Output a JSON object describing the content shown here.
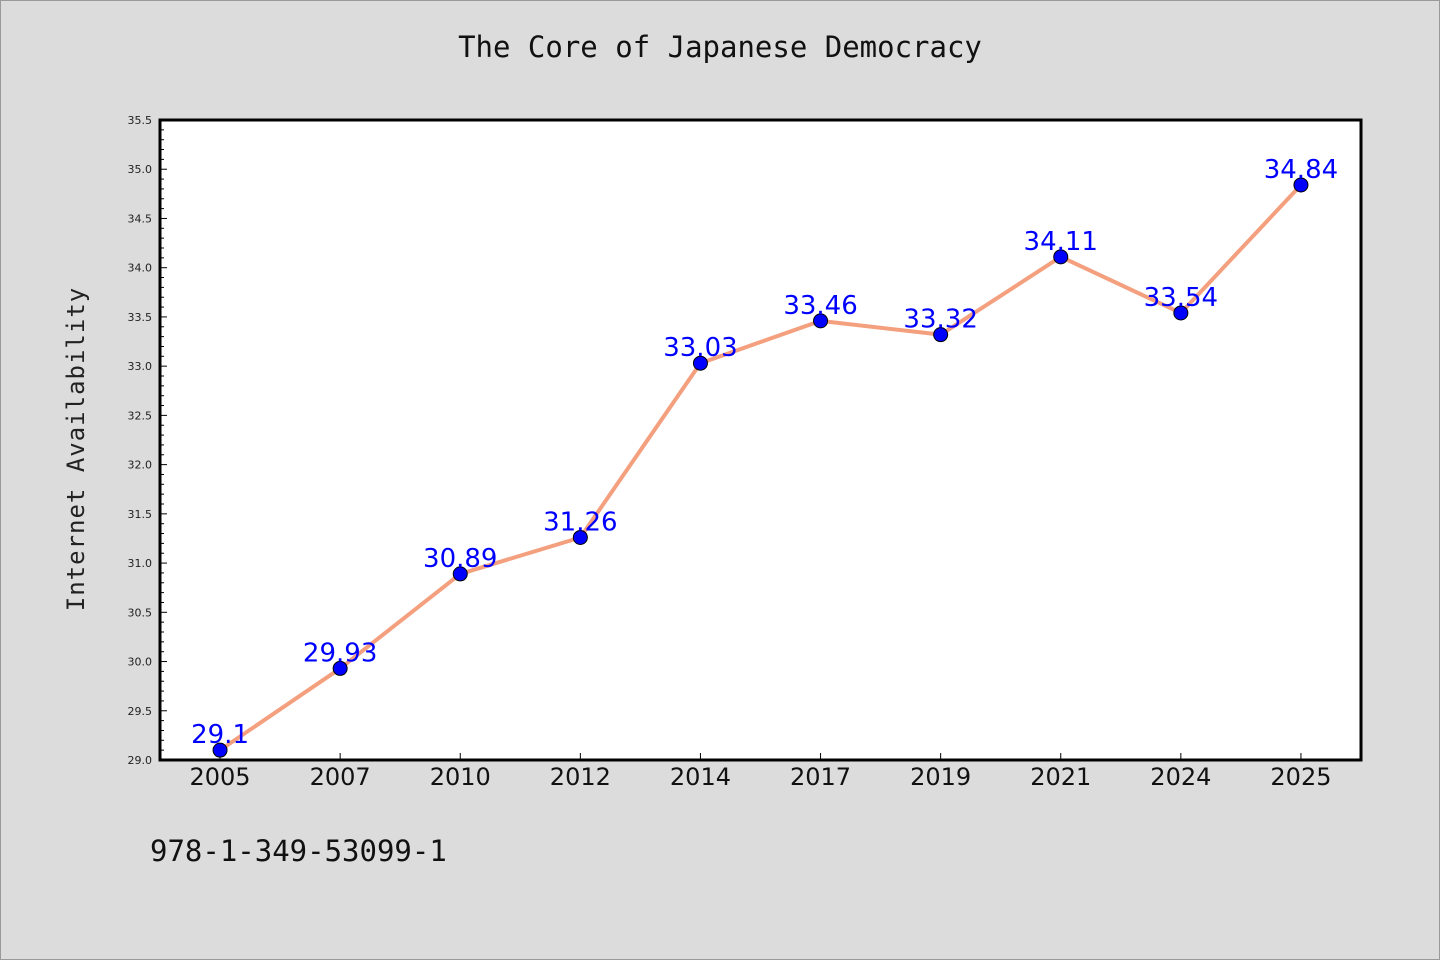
{
  "chart_data": {
    "type": "line",
    "title": "The Core of Japanese Democracy",
    "xlabel": "",
    "ylabel": "Internet Availability",
    "categories": [
      "2005",
      "2007",
      "2010",
      "2012",
      "2014",
      "2017",
      "2019",
      "2021",
      "2024",
      "2025"
    ],
    "series": [
      {
        "values": [
          29.1,
          29.93,
          30.89,
          31.26,
          33.03,
          33.46,
          33.32,
          34.11,
          33.54,
          34.84
        ],
        "labels": [
          "29.1",
          "29.93",
          "30.89",
          "31.26",
          "33.03",
          "33.46",
          "33.32",
          "34.11",
          "33.54",
          "34.84"
        ],
        "line_color": "#f4a07f",
        "marker_color": "#0000ff"
      }
    ],
    "ylim": [
      29.0,
      35.5
    ],
    "yticks": [
      "29.0",
      "29.5",
      "30.0",
      "30.5",
      "31.0",
      "31.5",
      "32.0",
      "32.5",
      "33.0",
      "33.5",
      "34.0",
      "34.5",
      "35.0",
      "35.5"
    ],
    "grid": false,
    "label_color": "#0000ff"
  },
  "footer": {
    "isbn": "978-1-349-53099-1"
  }
}
